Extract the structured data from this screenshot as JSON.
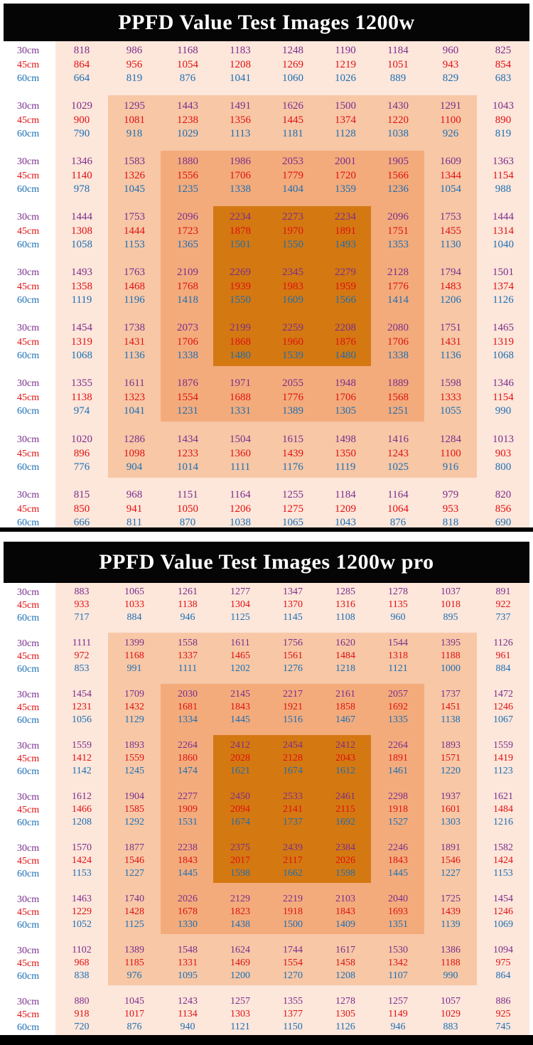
{
  "colors": {
    "row_30cm": "#7a2d8c",
    "row_45cm": "#e01010",
    "row_60cm": "#1a6fb4",
    "zone_outer": "#fde6da",
    "zone_ring2": "#f7c7a6",
    "zone_ring3": "#f3ab7c",
    "zone_center": "#d47812"
  },
  "chart_data": [
    {
      "type": "heatmap",
      "title": "PPFD Value Test Images 1200w",
      "row_labels": [
        "30cm",
        "45cm",
        "60cm"
      ],
      "grid": [
        [
          [
            818,
            864,
            664
          ],
          [
            986,
            956,
            819
          ],
          [
            1168,
            1054,
            876
          ],
          [
            1183,
            1208,
            1041
          ],
          [
            1248,
            1269,
            1060
          ],
          [
            1190,
            1219,
            1026
          ],
          [
            1184,
            1051,
            889
          ],
          [
            960,
            943,
            829
          ],
          [
            825,
            854,
            683
          ]
        ],
        [
          [
            1029,
            900,
            790
          ],
          [
            1295,
            1081,
            918
          ],
          [
            1443,
            1238,
            1029
          ],
          [
            1491,
            1356,
            1113
          ],
          [
            1626,
            1445,
            1181
          ],
          [
            1500,
            1374,
            1128
          ],
          [
            1430,
            1220,
            1038
          ],
          [
            1291,
            1100,
            926
          ],
          [
            1043,
            890,
            819
          ]
        ],
        [
          [
            1346,
            1140,
            978
          ],
          [
            1583,
            1326,
            1045
          ],
          [
            1880,
            1556,
            1235
          ],
          [
            1986,
            1706,
            1338
          ],
          [
            2053,
            1779,
            1404
          ],
          [
            2001,
            1720,
            1359
          ],
          [
            1905,
            1566,
            1236
          ],
          [
            1609,
            1344,
            1054
          ],
          [
            1363,
            1154,
            988
          ]
        ],
        [
          [
            1444,
            1308,
            1058
          ],
          [
            1753,
            1444,
            1153
          ],
          [
            2096,
            1723,
            1365
          ],
          [
            2234,
            1878,
            1501
          ],
          [
            2273,
            1970,
            1550
          ],
          [
            2234,
            1891,
            1493
          ],
          [
            2096,
            1751,
            1353
          ],
          [
            1753,
            1455,
            1130
          ],
          [
            1444,
            1314,
            1040
          ]
        ],
        [
          [
            1493,
            1358,
            1119
          ],
          [
            1763,
            1468,
            1196
          ],
          [
            2109,
            1768,
            1418
          ],
          [
            2269,
            1939,
            1550
          ],
          [
            2345,
            1983,
            1609
          ],
          [
            2279,
            1959,
            1566
          ],
          [
            2128,
            1776,
            1414
          ],
          [
            1794,
            1483,
            1206
          ],
          [
            1501,
            1374,
            1126
          ]
        ],
        [
          [
            1454,
            1319,
            1068
          ],
          [
            1738,
            1431,
            1136
          ],
          [
            2073,
            1706,
            1338
          ],
          [
            2199,
            1868,
            1480
          ],
          [
            2259,
            1960,
            1539
          ],
          [
            2208,
            1876,
            1480
          ],
          [
            2080,
            1706,
            1338
          ],
          [
            1751,
            1431,
            1136
          ],
          [
            1465,
            1319,
            1068
          ]
        ],
        [
          [
            1355,
            1138,
            974
          ],
          [
            1611,
            1323,
            1041
          ],
          [
            1876,
            1554,
            1231
          ],
          [
            1971,
            1688,
            1331
          ],
          [
            2055,
            1776,
            1389
          ],
          [
            1948,
            1706,
            1305
          ],
          [
            1889,
            1568,
            1251
          ],
          [
            1598,
            1333,
            1055
          ],
          [
            1346,
            1154,
            990
          ]
        ],
        [
          [
            1020,
            896,
            776
          ],
          [
            1286,
            1098,
            904
          ],
          [
            1434,
            1233,
            1014
          ],
          [
            1504,
            1360,
            1111
          ],
          [
            1615,
            1439,
            1176
          ],
          [
            1498,
            1350,
            1119
          ],
          [
            1416,
            1243,
            1025
          ],
          [
            1284,
            1100,
            916
          ],
          [
            1013,
            903,
            800
          ]
        ],
        [
          [
            815,
            850,
            666
          ],
          [
            968,
            941,
            811
          ],
          [
            1151,
            1050,
            870
          ],
          [
            1164,
            1206,
            1038
          ],
          [
            1255,
            1275,
            1065
          ],
          [
            1184,
            1209,
            1043
          ],
          [
            1164,
            1064,
            876
          ],
          [
            979,
            953,
            818
          ],
          [
            820,
            856,
            690
          ]
        ]
      ]
    },
    {
      "type": "heatmap",
      "title": "PPFD Value Test Images 1200w pro",
      "row_labels": [
        "30cm",
        "45cm",
        "60cm"
      ],
      "grid": [
        [
          [
            883,
            933,
            717
          ],
          [
            1065,
            1033,
            884
          ],
          [
            1261,
            1138,
            946
          ],
          [
            1277,
            1304,
            1125
          ],
          [
            1347,
            1370,
            1145
          ],
          [
            1285,
            1316,
            1108
          ],
          [
            1278,
            1135,
            960
          ],
          [
            1037,
            1018,
            895
          ],
          [
            891,
            922,
            737
          ]
        ],
        [
          [
            1111,
            972,
            853
          ],
          [
            1399,
            1168,
            991
          ],
          [
            1558,
            1337,
            1111
          ],
          [
            1611,
            1465,
            1202
          ],
          [
            1756,
            1561,
            1276
          ],
          [
            1620,
            1484,
            1218
          ],
          [
            1544,
            1318,
            1121
          ],
          [
            1395,
            1188,
            1000
          ],
          [
            1126,
            961,
            884
          ]
        ],
        [
          [
            1454,
            1231,
            1056
          ],
          [
            1709,
            1432,
            1129
          ],
          [
            2030,
            1681,
            1334
          ],
          [
            2145,
            1843,
            1445
          ],
          [
            2217,
            1921,
            1516
          ],
          [
            2161,
            1858,
            1467
          ],
          [
            2057,
            1692,
            1335
          ],
          [
            1737,
            1451,
            1138
          ],
          [
            1472,
            1246,
            1067
          ]
        ],
        [
          [
            1559,
            1412,
            1142
          ],
          [
            1893,
            1559,
            1245
          ],
          [
            2264,
            1860,
            1474
          ],
          [
            2412,
            2028,
            1621
          ],
          [
            2454,
            2128,
            1674
          ],
          [
            2412,
            2043,
            1612
          ],
          [
            2264,
            1891,
            1461
          ],
          [
            1893,
            1571,
            1220
          ],
          [
            1559,
            1419,
            1123
          ]
        ],
        [
          [
            1612,
            1466,
            1208
          ],
          [
            1904,
            1585,
            1292
          ],
          [
            2277,
            1909,
            1531
          ],
          [
            2450,
            2094,
            1674
          ],
          [
            2533,
            2141,
            1737
          ],
          [
            2461,
            2115,
            1692
          ],
          [
            2298,
            1918,
            1527
          ],
          [
            1937,
            1601,
            1303
          ],
          [
            1621,
            1484,
            1216
          ]
        ],
        [
          [
            1570,
            1424,
            1153
          ],
          [
            1877,
            1546,
            1227
          ],
          [
            2238,
            1843,
            1445
          ],
          [
            2375,
            2017,
            1598
          ],
          [
            2439,
            2117,
            1662
          ],
          [
            2384,
            2026,
            1598
          ],
          [
            2246,
            1843,
            1445
          ],
          [
            1891,
            1546,
            1227
          ],
          [
            1582,
            1424,
            1153
          ]
        ],
        [
          [
            1463,
            1229,
            1052
          ],
          [
            1740,
            1428,
            1125
          ],
          [
            2026,
            1678,
            1330
          ],
          [
            2129,
            1823,
            1438
          ],
          [
            2219,
            1918,
            1500
          ],
          [
            2103,
            1843,
            1409
          ],
          [
            2040,
            1693,
            1351
          ],
          [
            1725,
            1439,
            1139
          ],
          [
            1454,
            1246,
            1069
          ]
        ],
        [
          [
            1102,
            968,
            838
          ],
          [
            1389,
            1185,
            976
          ],
          [
            1548,
            1331,
            1095
          ],
          [
            1624,
            1469,
            1200
          ],
          [
            1744,
            1554,
            1270
          ],
          [
            1617,
            1458,
            1208
          ],
          [
            1530,
            1342,
            1107
          ],
          [
            1386,
            1188,
            990
          ],
          [
            1094,
            975,
            864
          ]
        ],
        [
          [
            880,
            918,
            720
          ],
          [
            1045,
            1017,
            876
          ],
          [
            1243,
            1134,
            940
          ],
          [
            1257,
            1303,
            1121
          ],
          [
            1355,
            1377,
            1150
          ],
          [
            1278,
            1305,
            1126
          ],
          [
            1257,
            1149,
            946
          ],
          [
            1057,
            1029,
            883
          ],
          [
            886,
            925,
            745
          ]
        ]
      ]
    }
  ]
}
